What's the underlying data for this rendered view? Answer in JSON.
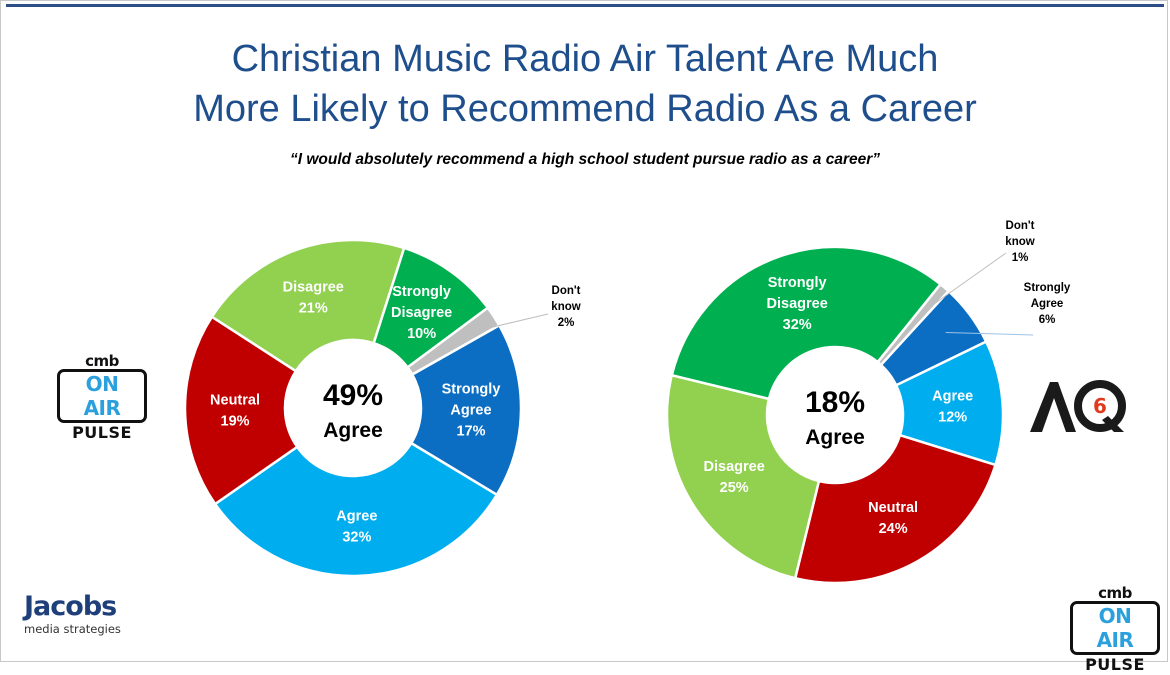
{
  "header": {
    "title_line1": "Christian Music Radio Air Talent Are Much",
    "title_line2": "More Likely to Recommend Radio As a Career",
    "subtitle": "“I would absolutely recommend a high school student pursue radio as a career”"
  },
  "chart_data": [
    {
      "type": "pie",
      "donut": true,
      "center_value": "49%",
      "center_label": "Agree",
      "slices": [
        {
          "label": [
            "Strongly",
            "Agree"
          ],
          "value": 17,
          "display": "17%",
          "color": "#0b6ec2"
        },
        {
          "label": [
            "Agree"
          ],
          "value": 32,
          "display": "32%",
          "color": "#00aeef"
        },
        {
          "label": [
            "Neutral"
          ],
          "value": 19,
          "display": "19%",
          "color": "#c00000"
        },
        {
          "label": [
            "Disagree"
          ],
          "value": 21,
          "display": "21%",
          "color": "#92d050"
        },
        {
          "label": [
            "Strongly",
            "Disagree"
          ],
          "value": 10,
          "display": "10%",
          "color": "#00b050"
        },
        {
          "label": [
            "Don't",
            "know"
          ],
          "value": 2,
          "display": "2%",
          "color": "#bfbfbf"
        }
      ]
    },
    {
      "type": "pie",
      "donut": true,
      "center_value": "18%",
      "center_label": "Agree",
      "slices": [
        {
          "label": [
            "Strongly",
            "Agree"
          ],
          "value": 6,
          "display": "6%",
          "color": "#0b6ec2"
        },
        {
          "label": [
            "Agree"
          ],
          "value": 12,
          "display": "12%",
          "color": "#00aeef"
        },
        {
          "label": [
            "Neutral"
          ],
          "value": 24,
          "display": "24%",
          "color": "#c00000"
        },
        {
          "label": [
            "Disagree"
          ],
          "value": 25,
          "display": "25%",
          "color": "#92d050"
        },
        {
          "label": [
            "Strongly",
            "Disagree"
          ],
          "value": 32,
          "display": "32%",
          "color": "#00b050"
        },
        {
          "label": [
            "Don't",
            "know"
          ],
          "value": 1,
          "display": "1%",
          "color": "#bfbfbf"
        }
      ]
    }
  ],
  "logos": {
    "left_onair": {
      "cmb": "cmb",
      "onair": "ON AIR",
      "pulse": "PULSE"
    },
    "bottom_onair": {
      "cmb": "cmb",
      "onair": "ON AIR",
      "pulse": "PULSE"
    },
    "jacobs": {
      "name": "Jacobs",
      "tagline": "media strategies"
    },
    "aq6": {
      "text": "AQ",
      "digit": "6"
    }
  }
}
